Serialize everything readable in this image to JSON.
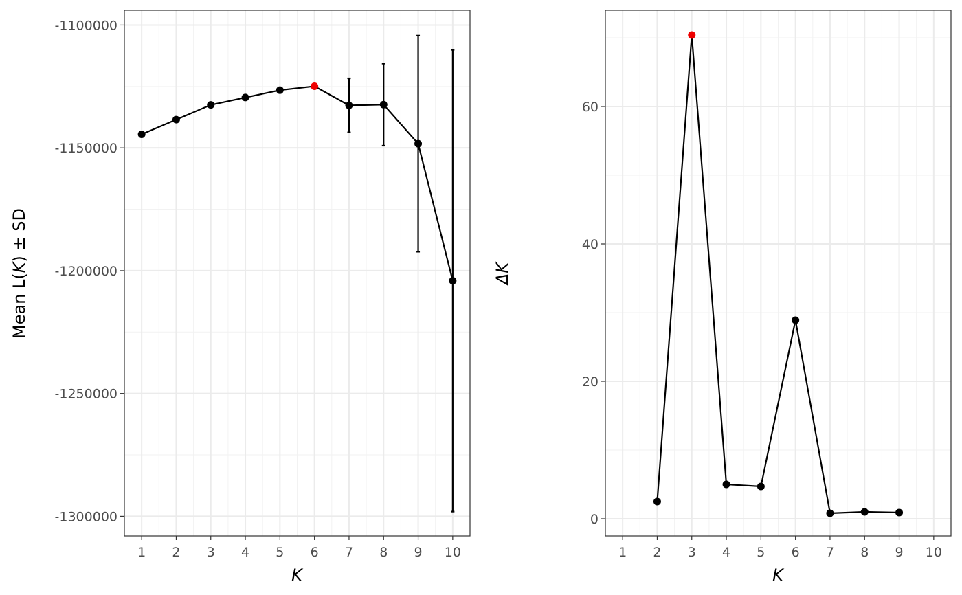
{
  "chart_data": [
    {
      "type": "line",
      "xlabel": "K",
      "ylabel": {
        "prefix": "Mean L(",
        "k": "K",
        "suffix": ")  ±  SD"
      },
      "x": [
        1,
        2,
        3,
        4,
        5,
        6,
        7,
        8,
        9,
        10
      ],
      "y": [
        -1144500,
        -1138500,
        -1132500,
        -1129500,
        -1126500,
        -1124900,
        -1132700,
        -1132400,
        -1148300,
        -1204100
      ],
      "sd": [
        0,
        0,
        0,
        0,
        0,
        0,
        11000,
        16700,
        44000,
        94000
      ],
      "highlight_x": 6,
      "xlim": [
        0.5,
        10.5
      ],
      "ylim": [
        -1308000,
        -1094000
      ],
      "x_ticks": [
        "1",
        "2",
        "3",
        "4",
        "5",
        "6",
        "7",
        "8",
        "9",
        "10"
      ],
      "y_ticks": [
        -1100000,
        -1150000,
        -1200000,
        -1250000,
        -1300000
      ],
      "y_tick_labels": [
        "-1100000",
        "-1150000",
        "-1200000",
        "-1250000",
        "-1300000"
      ],
      "grid": true,
      "point_color": "#000000",
      "highlight_color": "#ee0000"
    },
    {
      "type": "line",
      "xlabel": "K",
      "ylabel": "ΔK",
      "x": [
        2,
        3,
        4,
        5,
        6,
        7,
        8,
        9
      ],
      "y": [
        2.5,
        70.4,
        5.0,
        4.7,
        28.9,
        0.8,
        1.0,
        0.9
      ],
      "highlight_x": 3,
      "xlim": [
        0.5,
        10.5
      ],
      "ylim": [
        -2.5,
        74
      ],
      "x_ticks": [
        "1",
        "2",
        "3",
        "4",
        "5",
        "6",
        "7",
        "8",
        "9",
        "10"
      ],
      "y_ticks": [
        0,
        20,
        40,
        60
      ],
      "y_tick_labels": [
        "0",
        "20",
        "40",
        "60"
      ],
      "grid": true,
      "point_color": "#000000",
      "highlight_color": "#ee0000"
    }
  ]
}
